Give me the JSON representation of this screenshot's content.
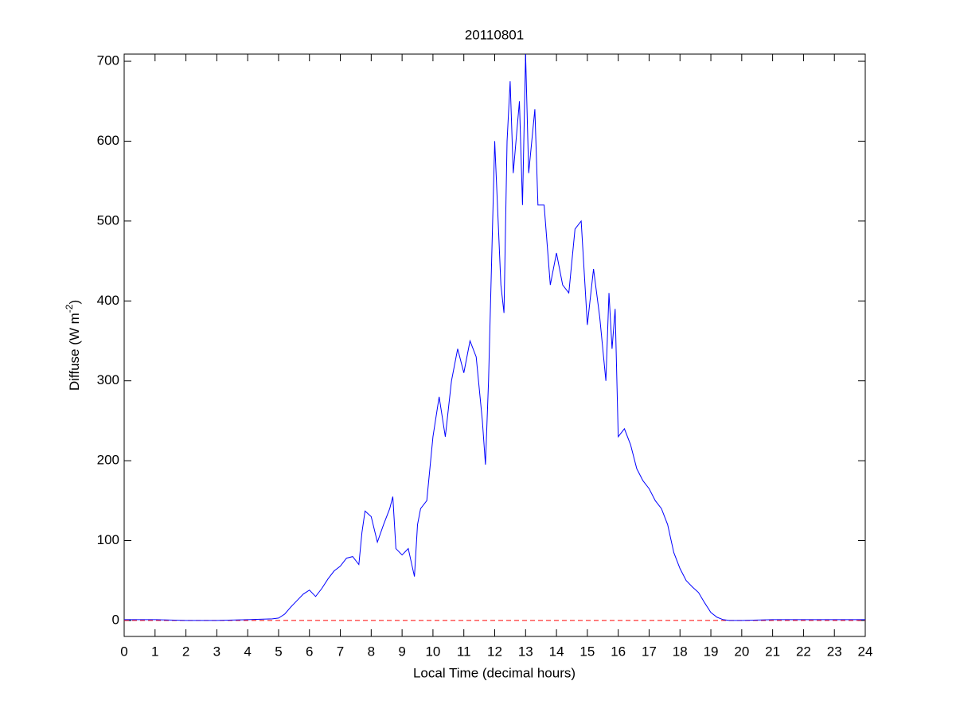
{
  "chart_data": {
    "type": "line",
    "title": "20110801",
    "x_label": "Local Time (decimal hours)",
    "y_label": {
      "text": "Diffuse (W m",
      "superscript": "-2",
      "suffix": ")"
    },
    "x": [
      0,
      1,
      2,
      3,
      4,
      4.8,
      5.0,
      5.2,
      5.4,
      5.6,
      5.8,
      6.0,
      6.2,
      6.4,
      6.6,
      6.8,
      7.0,
      7.2,
      7.4,
      7.6,
      7.7,
      7.8,
      8.0,
      8.2,
      8.4,
      8.6,
      8.7,
      8.8,
      9.0,
      9.2,
      9.4,
      9.5,
      9.6,
      9.8,
      10.0,
      10.2,
      10.4,
      10.6,
      10.8,
      11.0,
      11.2,
      11.4,
      11.6,
      11.7,
      11.8,
      12.0,
      12.2,
      12.3,
      12.4,
      12.5,
      12.6,
      12.8,
      12.9,
      13.0,
      13.1,
      13.2,
      13.3,
      13.4,
      13.6,
      13.8,
      14.0,
      14.2,
      14.4,
      14.6,
      14.8,
      15.0,
      15.2,
      15.4,
      15.6,
      15.7,
      15.8,
      15.9,
      16.0,
      16.2,
      16.4,
      16.6,
      16.8,
      17.0,
      17.2,
      17.4,
      17.6,
      17.8,
      18.0,
      18.2,
      18.4,
      18.6,
      18.8,
      19.0,
      19.2,
      19.4,
      19.6,
      20,
      21,
      22,
      23,
      24
    ],
    "series": [
      {
        "color": "#0000ff",
        "values": [
          1,
          1,
          0,
          0,
          1,
          2,
          3,
          8,
          17,
          25,
          33,
          38,
          30,
          40,
          52,
          62,
          68,
          78,
          80,
          70,
          110,
          137,
          130,
          98,
          120,
          140,
          155,
          90,
          82,
          90,
          55,
          120,
          140,
          150,
          230,
          280,
          230,
          300,
          340,
          310,
          350,
          330,
          250,
          195,
          300,
          600,
          420,
          385,
          600,
          675,
          560,
          650,
          520,
          709,
          560,
          600,
          640,
          520,
          520,
          420,
          460,
          420,
          410,
          490,
          500,
          370,
          440,
          380,
          300,
          410,
          340,
          390,
          230,
          240,
          220,
          190,
          175,
          165,
          150,
          140,
          120,
          85,
          65,
          50,
          42,
          35,
          22,
          10,
          4,
          1,
          0,
          0,
          1,
          1,
          1,
          1
        ]
      }
    ],
    "reference_line": {
      "value": 0,
      "color": "#ff0000",
      "style": "dashed"
    },
    "xlim": [
      0,
      24
    ],
    "xticks": [
      0,
      1,
      2,
      3,
      4,
      5,
      6,
      7,
      8,
      9,
      10,
      11,
      12,
      13,
      14,
      15,
      16,
      17,
      18,
      19,
      20,
      21,
      22,
      23,
      24
    ],
    "ylim": [
      -20,
      709
    ],
    "yticks": [
      0,
      100,
      200,
      300,
      400,
      500,
      600,
      700
    ]
  }
}
